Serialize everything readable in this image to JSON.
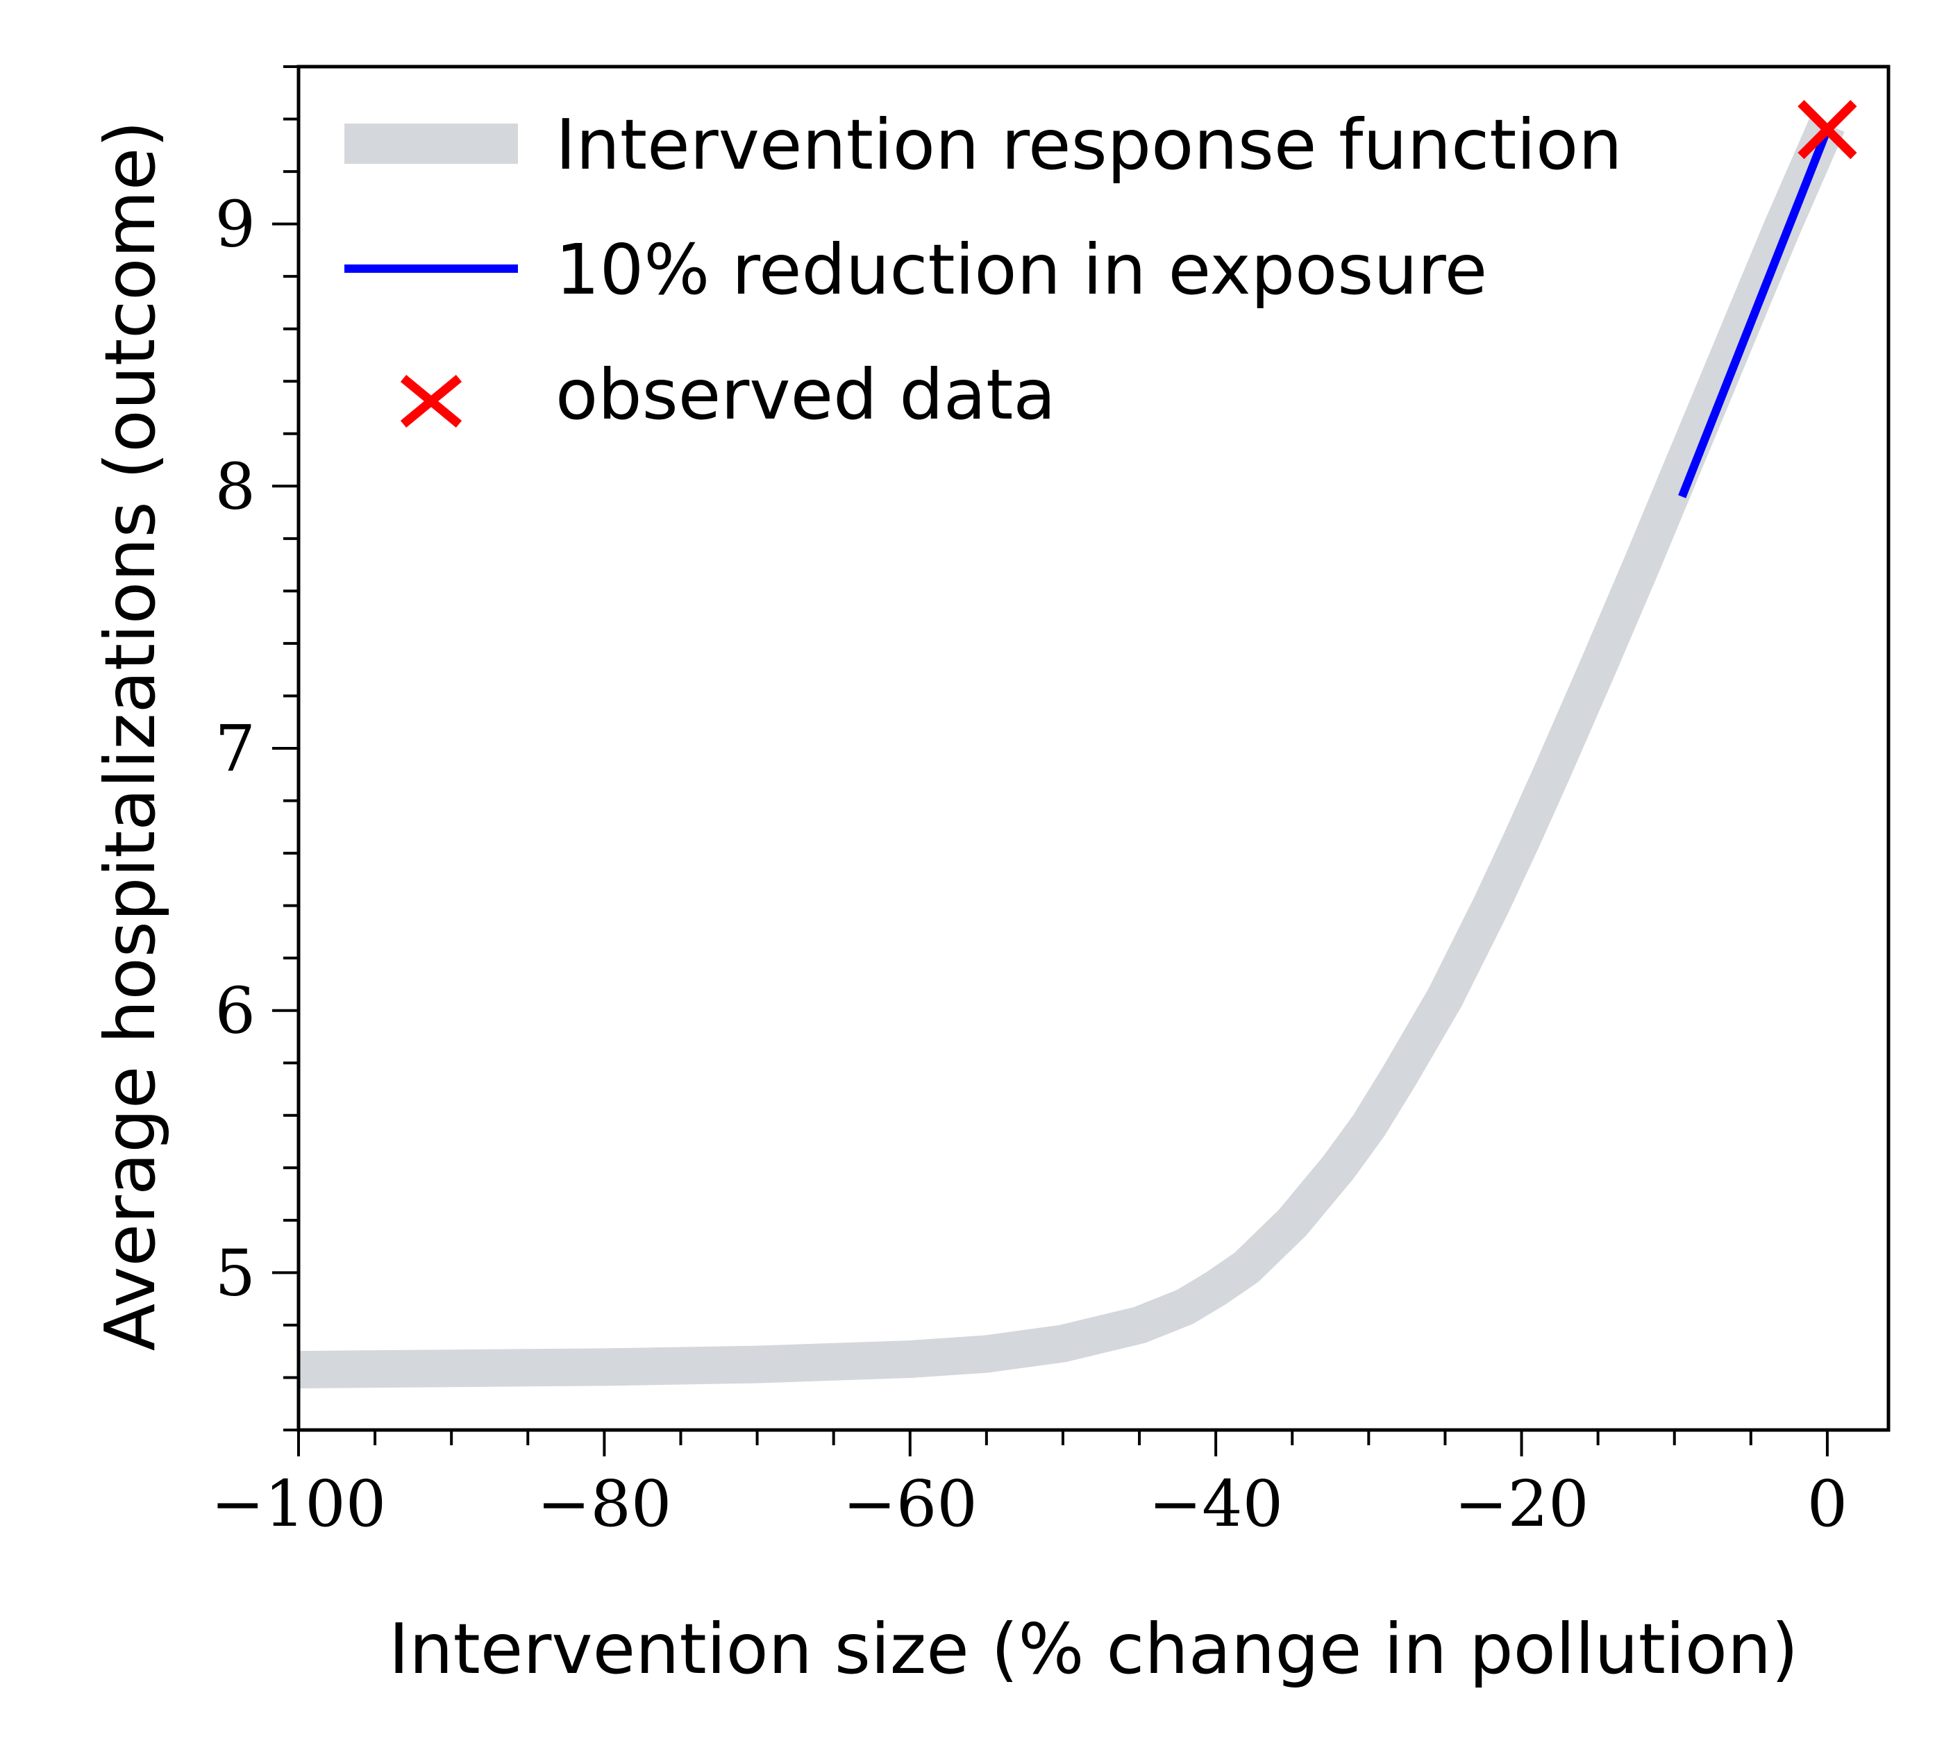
{
  "chart_data": {
    "type": "line",
    "xlabel": "Intervention size (% change in pollution)",
    "ylabel": "Average hospitalizations (outcome)",
    "xlim": [
      -100,
      4
    ],
    "ylim": [
      4.4,
      9.6
    ],
    "x_ticks": [
      -100,
      -80,
      -60,
      -40,
      -20,
      0
    ],
    "x_tick_labels": [
      "−100",
      "−80",
      "−60",
      "−40",
      "−20",
      "0"
    ],
    "y_ticks": [
      5,
      6,
      7,
      8,
      9
    ],
    "y_tick_labels": [
      "5",
      "6",
      "7",
      "8",
      "9"
    ],
    "x_minor_step": 5,
    "y_minor_step": 0.2,
    "grid": false,
    "legend_position": "top-left",
    "series": [
      {
        "name": "Intervention response function",
        "style": "thick-line",
        "color": "#d4d7db",
        "x": [
          -100,
          -90,
          -80,
          -70,
          -60,
          -55,
          -50,
          -45,
          -42,
          -40,
          -38,
          -35,
          -32,
          -30,
          -28,
          -25,
          -22,
          -20,
          -18,
          -15,
          -12,
          -10,
          -8,
          -5,
          -3,
          0
        ],
        "y": [
          4.63,
          4.635,
          4.64,
          4.65,
          4.67,
          4.69,
          4.73,
          4.8,
          4.87,
          4.94,
          5.02,
          5.19,
          5.4,
          5.56,
          5.75,
          6.05,
          6.4,
          6.65,
          6.91,
          7.31,
          7.72,
          8.0,
          8.28,
          8.7,
          8.98,
          9.38
        ]
      },
      {
        "name": "10% reduction in exposure",
        "style": "line",
        "color": "#0000ff",
        "x": [
          -9.5,
          0
        ],
        "y": [
          7.96,
          9.36
        ]
      },
      {
        "name": "observed data",
        "style": "marker-x",
        "color": "#ff0000",
        "x": [
          0
        ],
        "y": [
          9.36
        ]
      }
    ]
  }
}
